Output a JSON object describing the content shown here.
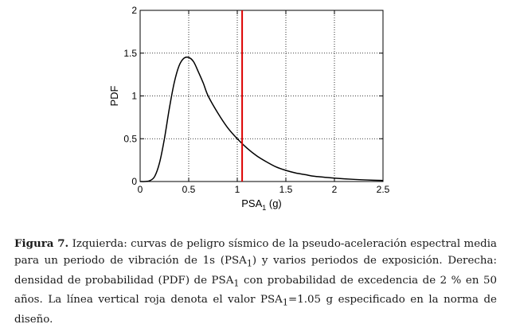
{
  "chart_data": {
    "type": "line",
    "xlabel": "PSA",
    "xlabel_sub": "1",
    "xlabel_unit": " (g)",
    "ylabel": "PDF",
    "xlim": [
      0,
      2.5
    ],
    "ylim": [
      0,
      2
    ],
    "xticks": [
      0,
      0.5,
      1,
      1.5,
      2,
      2.5
    ],
    "xtick_labels": [
      "0",
      "0.5",
      "1",
      "1.5",
      "2",
      "2.5"
    ],
    "yticks": [
      0,
      0.5,
      1,
      1.5,
      2
    ],
    "ytick_labels": [
      "0",
      "0.5",
      "1",
      "1.5",
      "2"
    ],
    "grid": true,
    "series": [
      {
        "color": "#000000",
        "x": [
          0,
          0.05,
          0.1,
          0.15,
          0.2,
          0.25,
          0.3,
          0.35,
          0.4,
          0.45,
          0.5,
          0.55,
          0.6,
          0.65,
          0.7,
          0.8,
          0.9,
          1.0,
          1.1,
          1.2,
          1.3,
          1.4,
          1.5,
          1.6,
          1.7,
          1.8,
          2.0,
          2.2,
          2.4,
          2.5
        ],
        "y": [
          0,
          0,
          0.01,
          0.06,
          0.22,
          0.5,
          0.85,
          1.15,
          1.35,
          1.44,
          1.45,
          1.4,
          1.28,
          1.15,
          1.0,
          0.8,
          0.63,
          0.5,
          0.39,
          0.3,
          0.23,
          0.17,
          0.13,
          0.1,
          0.08,
          0.06,
          0.04,
          0.025,
          0.015,
          0.012
        ]
      }
    ],
    "vline": {
      "x": 1.05,
      "color": "#dd0000"
    }
  },
  "caption": {
    "label": "Figura 7.",
    "text_1": " Izquierda: curvas de peligro sísmico de la pseudo-aceleración espectral media para un periodo de vibración de 1s (PSA",
    "sub_1": "1",
    "text_2": ") y varios periodos de exposición. Derecha: densidad de probabilidad (PDF) de PSA",
    "sub_2": "1",
    "text_3": " con probabilidad de excedencia de 2 % en 50 años. La línea vertical roja denota el valor PSA",
    "sub_3": "1",
    "text_4": "=1.05 g especificado en la norma de diseño."
  }
}
